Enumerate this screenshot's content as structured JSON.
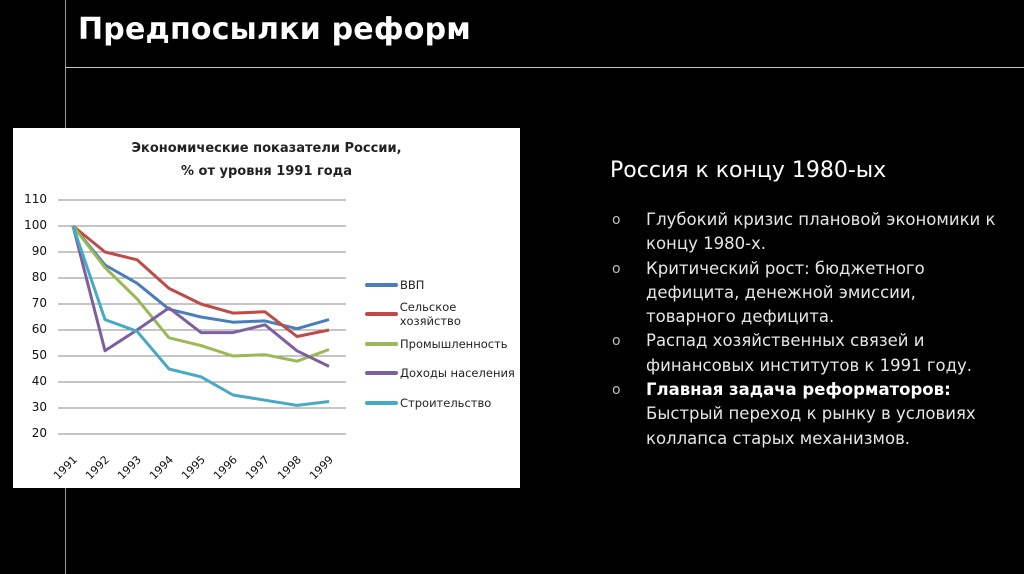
{
  "slide": {
    "title": "Предпосылки реформ",
    "subtitle": "Россия к концу 1980-ых",
    "bullets": [
      {
        "marker": "o",
        "bold": "",
        "text": "Глубокий кризис плановой экономики к концу 1980-х."
      },
      {
        "marker": "o",
        "bold": "",
        "text": "Критический рост: бюджетного дефицита, денежной эмиссии, товарного дефицита."
      },
      {
        "marker": "o",
        "bold": "",
        "text": "Распад хозяйственных связей и финансовых институтов к 1991 году."
      },
      {
        "marker": "o",
        "bold": "Главная задача реформаторов:",
        "text": "Быстрый переход к рынку в условиях коллапса старых механизмов."
      }
    ]
  },
  "chart_data": {
    "type": "line",
    "title": "Экономические показатели России,",
    "subtitle": "% от уровня 1991 года",
    "xlabel": "",
    "ylabel": "",
    "ylim": [
      20,
      110
    ],
    "yticks": [
      "110",
      "100",
      "90",
      "80",
      "70",
      "60",
      "50",
      "40",
      "30",
      "20"
    ],
    "grid": true,
    "legend_position": "right",
    "categories": [
      "1991",
      "1992",
      "1993",
      "1994",
      "1995",
      "1996",
      "1997",
      "1998",
      "1999"
    ],
    "series": [
      {
        "name": "ВВП",
        "color": "#4a7ebb",
        "values": [
          100,
          85,
          78,
          68,
          65,
          63,
          63.5,
          60.5,
          64
        ]
      },
      {
        "name": "Сельское хозяйство",
        "color": "#be4b48",
        "values": [
          100,
          90,
          87,
          76,
          70,
          66.5,
          67,
          57.5,
          60
        ]
      },
      {
        "name": "Промышленность",
        "color": "#98b954",
        "values": [
          100,
          84,
          72,
          57,
          54,
          50,
          50.5,
          48,
          52.5
        ]
      },
      {
        "name": "Доходы населения",
        "color": "#7d60a0",
        "values": [
          100,
          52,
          60,
          68.5,
          59,
          59,
          62,
          52,
          46
        ]
      },
      {
        "name": "Строительство",
        "color": "#46aac5",
        "values": [
          100,
          64,
          59.5,
          45,
          42,
          35,
          33,
          31,
          32.5
        ]
      }
    ]
  }
}
